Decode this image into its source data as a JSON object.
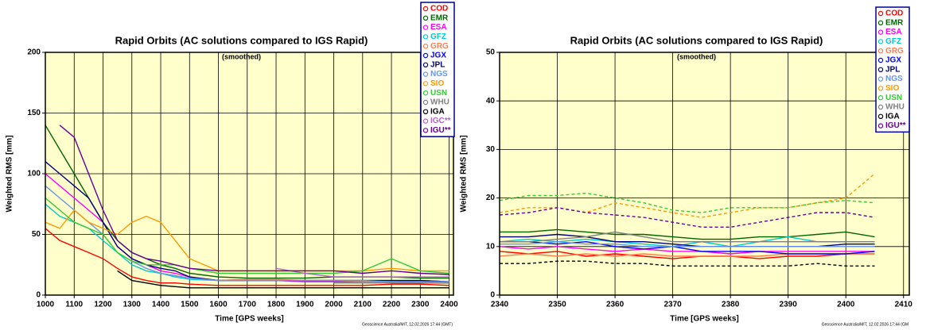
{
  "chart_data": [
    {
      "type": "line",
      "title": "Rapid Orbits (AC solutions compared to IGS Rapid)",
      "subtitle": "(smoothed)",
      "x_label": "Time [GPS weeks]",
      "y_label": "Weighted RMS [mm]",
      "footer": "Geoscience Australia/MIT, 12.02.2026 17:44 (GMT)",
      "xlim": [
        1000,
        2415
      ],
      "ylim": [
        0,
        200
      ],
      "xticks": [
        1000,
        1100,
        1200,
        1300,
        1400,
        1500,
        1600,
        1700,
        1800,
        1900,
        2000,
        2100,
        2200,
        2300,
        2400
      ],
      "yticks": [
        0,
        50,
        100,
        150,
        200
      ],
      "grid": true,
      "legend": "top-right",
      "x": [
        1000,
        1050,
        1100,
        1150,
        1200,
        1250,
        1300,
        1350,
        1400,
        1450,
        1500,
        1600,
        1700,
        1800,
        1900,
        2000,
        2100,
        2200,
        2300,
        2400
      ],
      "series": [
        {
          "name": "COD",
          "color": "#ff0000",
          "values": [
            55,
            45,
            40,
            35,
            30,
            22,
            15,
            12,
            10,
            10,
            9,
            8,
            8,
            8,
            8,
            8,
            8,
            9,
            9,
            8
          ]
        },
        {
          "name": "EMR",
          "color": "#006400",
          "values": [
            140,
            120,
            100,
            80,
            60,
            45,
            35,
            30,
            25,
            22,
            18,
            15,
            14,
            14,
            14,
            15,
            15,
            15,
            14,
            14
          ]
        },
        {
          "name": "ESA",
          "color": "#ff00ff",
          "values": [
            100,
            90,
            80,
            70,
            60,
            40,
            30,
            25,
            20,
            18,
            15,
            12,
            12,
            12,
            11,
            11,
            11,
            11,
            12,
            11
          ]
        },
        {
          "name": "GFZ",
          "color": "#00cccc",
          "values": [
            75,
            65,
            60,
            55,
            45,
            35,
            25,
            20,
            18,
            15,
            13,
            12,
            12,
            12,
            12,
            12,
            12,
            12,
            12,
            11
          ]
        },
        {
          "name": "GRG",
          "color": "#ff7f50",
          "values": [
            null,
            null,
            null,
            null,
            null,
            null,
            null,
            null,
            null,
            null,
            null,
            12,
            13,
            13,
            12,
            12,
            11,
            11,
            10,
            10
          ]
        },
        {
          "name": "JGX",
          "color": "#0000ff",
          "values": [
            null,
            null,
            null,
            null,
            null,
            null,
            null,
            null,
            null,
            null,
            null,
            null,
            null,
            null,
            null,
            null,
            null,
            10,
            10,
            10
          ]
        },
        {
          "name": "JPL",
          "color": "#000080",
          "values": [
            110,
            100,
            90,
            80,
            60,
            40,
            30,
            25,
            22,
            20,
            15,
            12,
            12,
            12,
            12,
            12,
            12,
            12,
            12,
            11
          ]
        },
        {
          "name": "NGS",
          "color": "#6495ed",
          "values": [
            90,
            80,
            70,
            60,
            50,
            35,
            28,
            22,
            18,
            16,
            14,
            12,
            12,
            12,
            12,
            12,
            12,
            11,
            11,
            11
          ]
        },
        {
          "name": "SIO",
          "color": "#ff9900",
          "values": [
            60,
            55,
            70,
            60,
            55,
            50,
            60,
            65,
            60,
            45,
            30,
            20,
            20,
            20,
            20,
            20,
            20,
            22,
            20,
            20
          ]
        },
        {
          "name": "USN",
          "color": "#33cc33",
          "values": [
            80,
            70,
            60,
            55,
            50,
            35,
            28,
            25,
            25,
            25,
            22,
            18,
            18,
            18,
            18,
            18,
            20,
            30,
            20,
            18
          ]
        },
        {
          "name": "WHU",
          "color": "#808080",
          "values": [
            null,
            null,
            null,
            null,
            null,
            null,
            null,
            null,
            null,
            null,
            null,
            null,
            null,
            null,
            null,
            10,
            10,
            10,
            10,
            10
          ]
        },
        {
          "name": "IGA",
          "color": "#000000",
          "values": [
            null,
            null,
            null,
            null,
            null,
            20,
            12,
            10,
            8,
            7,
            6,
            6,
            6,
            6,
            6,
            6,
            6,
            6,
            6,
            6
          ]
        },
        {
          "name": "IGC**",
          "color": "#b266cc",
          "values": [
            null,
            null,
            null,
            null,
            null,
            null,
            null,
            null,
            null,
            null,
            null,
            null,
            null,
            22,
            18,
            15,
            15,
            15,
            15,
            15
          ]
        },
        {
          "name": "IGU**",
          "color": "#660099",
          "values": [
            null,
            140,
            130,
            100,
            70,
            45,
            35,
            30,
            28,
            25,
            22,
            20,
            20,
            20,
            20,
            20,
            18,
            20,
            18,
            17
          ]
        }
      ]
    },
    {
      "type": "line",
      "title": "Rapid Orbits (AC solutions compared to IGS Rapid)",
      "subtitle": "(smoothed)",
      "x_label": "Time [GPS weeks]",
      "y_label": "Weighted RMS [mm]",
      "footer": "Geoscience Australia/MIT, 12.02.2026 17:44 (GM",
      "xlim": [
        2340,
        2411
      ],
      "ylim": [
        0,
        50
      ],
      "xticks": [
        2340,
        2350,
        2360,
        2370,
        2380,
        2390,
        2400,
        2410
      ],
      "yticks": [
        0,
        10,
        20,
        30,
        40,
        50
      ],
      "grid": true,
      "legend": "top-right",
      "x": [
        2340,
        2345,
        2350,
        2355,
        2360,
        2365,
        2370,
        2375,
        2380,
        2385,
        2390,
        2395,
        2400,
        2405
      ],
      "series": [
        {
          "name": "COD",
          "color": "#ff0000",
          "values": [
            9,
            8.5,
            9,
            8,
            8.5,
            8,
            7.5,
            8,
            8,
            7.5,
            8,
            8,
            8.5,
            8.5
          ]
        },
        {
          "name": "EMR",
          "color": "#006400",
          "values": [
            13,
            13,
            13.5,
            13,
            12.5,
            12.5,
            12,
            11.5,
            11.5,
            12,
            12,
            12.5,
            13,
            12
          ]
        },
        {
          "name": "ESA",
          "color": "#ff00ff",
          "values": [
            10,
            9.5,
            10,
            9.5,
            9,
            9.5,
            9,
            9,
            8.5,
            9,
            9,
            9,
            9,
            9
          ]
        },
        {
          "name": "GFZ",
          "color": "#00cccc",
          "values": [
            11,
            11.5,
            11,
            11.5,
            11,
            10.5,
            10,
            11,
            10,
            11,
            12,
            11,
            11,
            11
          ]
        },
        {
          "name": "GRG",
          "color": "#ff7f50",
          "values": [
            8,
            8.5,
            8,
            8.5,
            8,
            8.5,
            8,
            8,
            8,
            8,
            8.5,
            8.5,
            8.5,
            8.5
          ]
        },
        {
          "name": "JGX",
          "color": "#0000ff",
          "values": [
            11,
            11,
            10.5,
            11,
            10,
            9.5,
            10,
            9,
            9,
            9,
            8.5,
            8.5,
            8.5,
            9
          ]
        },
        {
          "name": "JPL",
          "color": "#000080",
          "values": [
            12,
            12,
            12.5,
            12,
            11,
            11,
            10.5,
            10,
            10,
            10,
            10,
            10,
            10.5,
            10.5
          ]
        },
        {
          "name": "NGS",
          "color": "#6495ed",
          "values": [
            10.5,
            10.5,
            11,
            10.5,
            10.5,
            10,
            10,
            10,
            10,
            10,
            10,
            10,
            10,
            10
          ]
        },
        {
          "name": "SIO",
          "color": "#ff9900",
          "dashed": true,
          "values": [
            17,
            18,
            18,
            17,
            19,
            18,
            17,
            16,
            17,
            18,
            18,
            19,
            20,
            25
          ]
        },
        {
          "name": "USN",
          "color": "#33cc33",
          "dashed": true,
          "values": [
            19.5,
            20.5,
            20.5,
            21,
            20,
            19,
            17.5,
            17,
            18,
            18,
            18,
            19,
            19.5,
            19
          ]
        },
        {
          "name": "WHU",
          "color": "#808080",
          "values": [
            11,
            11,
            11.5,
            12,
            13,
            12,
            11,
            11,
            11,
            11,
            11,
            11,
            11,
            11
          ]
        },
        {
          "name": "IGA",
          "color": "#000000",
          "dashed": true,
          "values": [
            6.5,
            6.5,
            7,
            7,
            6.5,
            6.5,
            6,
            6,
            6,
            6,
            6,
            6.5,
            6,
            6
          ]
        },
        {
          "name": "IGU**",
          "color": "#660099",
          "dashed": true,
          "values": [
            16.5,
            17,
            18,
            17,
            16.5,
            16,
            15,
            14,
            14,
            15,
            16,
            17,
            17,
            16
          ]
        }
      ]
    }
  ]
}
